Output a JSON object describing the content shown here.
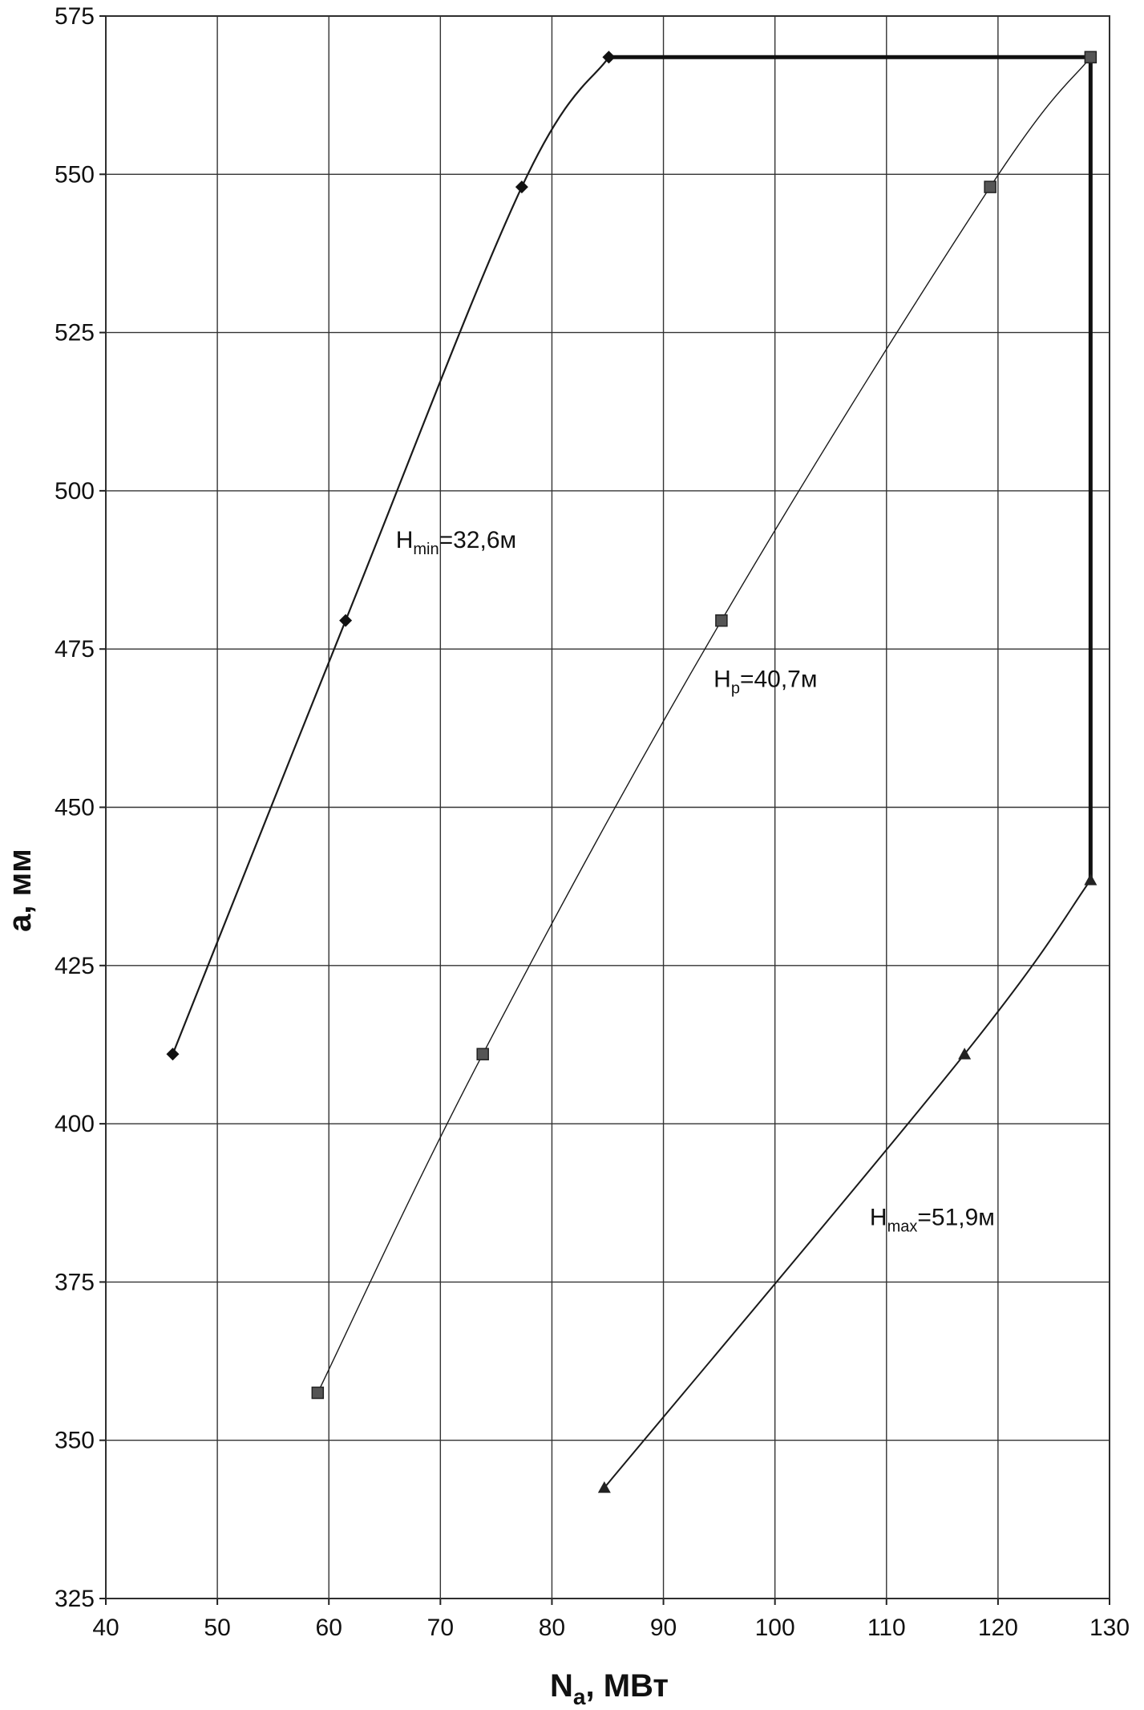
{
  "chart_data": {
    "type": "line",
    "xlabel": {
      "main": "N",
      "sub": "a",
      "rest": ", МВт"
    },
    "ylabel": "a, мм",
    "xlim": [
      40,
      130
    ],
    "ylim": [
      325,
      575
    ],
    "x_ticks": [
      40,
      50,
      60,
      70,
      80,
      90,
      100,
      110,
      120,
      130
    ],
    "y_ticks": [
      325,
      350,
      375,
      400,
      425,
      450,
      475,
      500,
      525,
      550,
      575
    ],
    "grid": true,
    "series": [
      {
        "marker": "diamond",
        "points": [
          [
            46,
            411
          ],
          [
            61.5,
            479.5
          ],
          [
            77.3,
            548
          ],
          [
            85.1,
            568.5
          ]
        ],
        "annotation": {
          "main": "H",
          "sub": "min",
          "rest": "=32,6м",
          "x": 66,
          "y": 491
        }
      },
      {
        "marker": "square",
        "points": [
          [
            59,
            357.5
          ],
          [
            73.8,
            411
          ],
          [
            95.2,
            479.5
          ],
          [
            119.3,
            548
          ],
          [
            128.3,
            568.5
          ]
        ],
        "annotation": {
          "main": "H",
          "sub": "p",
          "rest": "=40,7м",
          "x": 94.5,
          "y": 469
        }
      },
      {
        "marker": "triangle",
        "points": [
          [
            84.7,
            342.5
          ],
          [
            117,
            411
          ],
          [
            128.3,
            438.5
          ]
        ],
        "annotation": {
          "main": "H",
          "sub": "max",
          "rest": "=51,9м",
          "x": 108.5,
          "y": 384
        }
      }
    ],
    "boundary": [
      [
        85.1,
        568.5
      ],
      [
        128.3,
        568.5
      ],
      [
        128.3,
        438.5
      ]
    ]
  }
}
